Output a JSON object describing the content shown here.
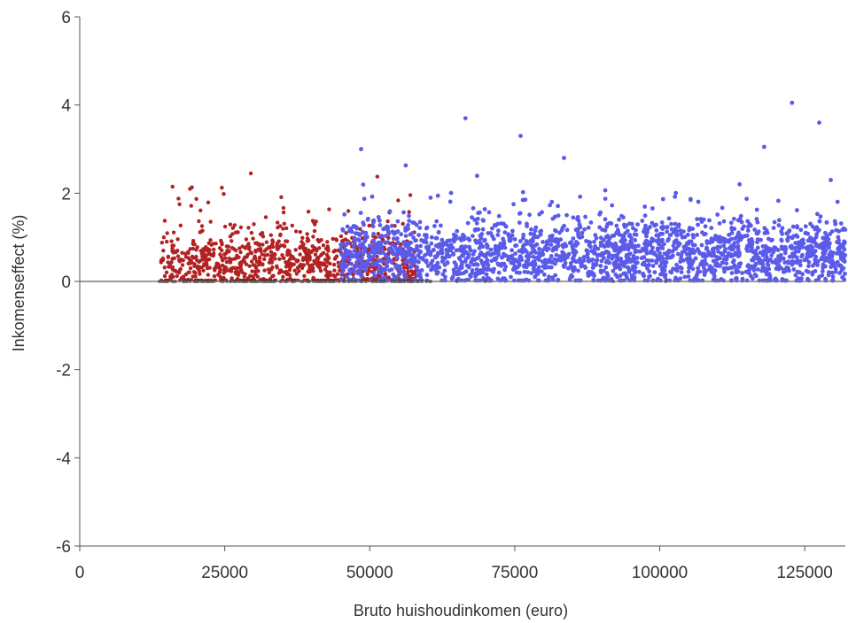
{
  "chart_data": {
    "type": "scatter",
    "xlabel": "Bruto huishoudinkomen (euro)",
    "ylabel": "Inkomenseffect (%)",
    "xlim": [
      0,
      132000
    ],
    "ylim": [
      -6,
      6
    ],
    "x_ticks": [
      0,
      25000,
      50000,
      75000,
      100000,
      125000
    ],
    "y_ticks": [
      -6,
      -4,
      -2,
      0,
      2,
      4,
      6
    ],
    "x_tick_labels": [
      "0",
      "25000",
      "50000",
      "75000",
      "100000",
      "125000"
    ],
    "y_tick_labels": [
      "-6",
      "-4",
      "-2",
      "0",
      "2",
      "4",
      "6"
    ],
    "reference_line_y": 0,
    "grid": false,
    "legend": "none",
    "series": [
      {
        "color": "#b22222",
        "marker_size": 2.2,
        "generate": {
          "x_range": [
            14000,
            58000
          ],
          "y_mode": 0.4,
          "y_max": 2.5,
          "count": 900,
          "seed": 7
        },
        "points": [
          [
            16000,
            2.15
          ],
          [
            19000,
            2.1
          ],
          [
            29500,
            2.45
          ],
          [
            14500,
            1.0
          ],
          [
            15000,
            0.9
          ]
        ]
      },
      {
        "color": "#5b5bea",
        "marker_size": 2.4,
        "generate": {
          "x_range": [
            45000,
            132000
          ],
          "y_mode": 0.6,
          "y_max": 2.8,
          "count": 2100,
          "seed": 11
        },
        "points": [
          [
            48500,
            3.0
          ],
          [
            66500,
            3.7
          ],
          [
            76000,
            3.3
          ],
          [
            83500,
            2.8
          ],
          [
            118000,
            3.05
          ],
          [
            122800,
            4.05
          ],
          [
            127500,
            3.6
          ],
          [
            129500,
            2.3
          ]
        ]
      },
      {
        "color": "#111111",
        "marker_size": 1.6,
        "generate": {
          "x_range": [
            13500,
            61000
          ],
          "y_value": 0,
          "count": 160,
          "seed": 3
        },
        "points": [
          [
            65000,
            0
          ],
          [
            70000,
            0
          ],
          [
            92000,
            0
          ],
          [
            101000,
            0
          ]
        ]
      }
    ]
  }
}
